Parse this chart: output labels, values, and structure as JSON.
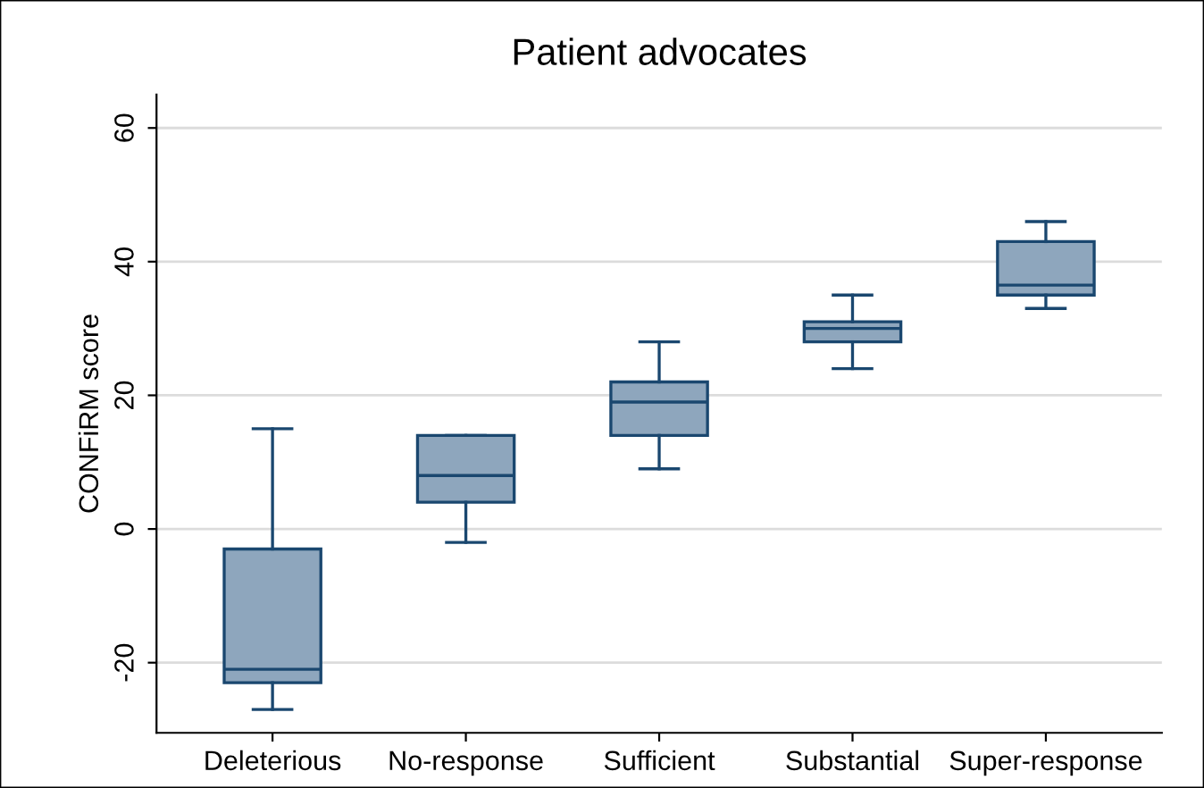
{
  "chart_data": {
    "type": "box",
    "title": "Patient advocates",
    "ylabel": "CONFiRM score",
    "categories": [
      "Deleterious",
      "No-response",
      "Sufficient",
      "Substantial",
      "Super-response"
    ],
    "series": [
      {
        "color": "#8ea6bd",
        "boxes": [
          {
            "low": -27,
            "q1": -23,
            "median": -21,
            "q3": -3,
            "high": 15
          },
          {
            "low": -2,
            "q1": 4,
            "median": 8,
            "q3": 14,
            "high": 14
          },
          {
            "low": 9,
            "q1": 14,
            "median": 19,
            "q3": 22,
            "high": 28
          },
          {
            "low": 24,
            "q1": 28,
            "median": 30,
            "q3": 31,
            "high": 35
          },
          {
            "low": 33,
            "q1": 35,
            "median": 36.5,
            "q3": 43,
            "high": 46
          }
        ]
      }
    ],
    "ylim": [
      -30.5,
      65
    ],
    "yticks": [
      -20,
      0,
      20,
      40,
      60
    ],
    "grid": "y"
  }
}
